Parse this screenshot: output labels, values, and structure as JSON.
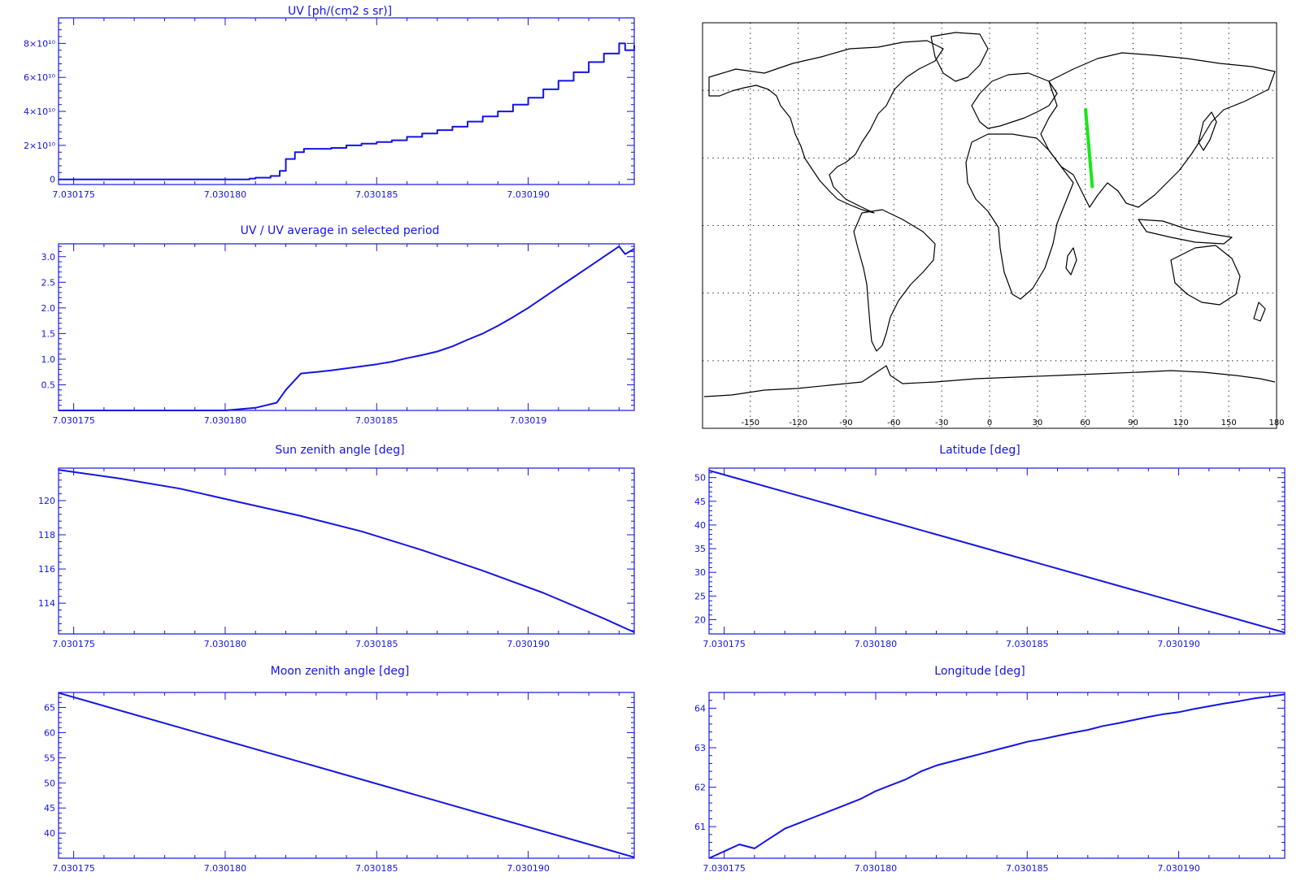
{
  "colors": {
    "plot": "#1414e6",
    "map_lines": "#000000",
    "track": "#19e619"
  },
  "chart_data": [
    {
      "id": "uv",
      "type": "line",
      "step": true,
      "title": "UV [ph/(cm2 s sr)]",
      "xlim": [
        7.0301745,
        7.0301935
      ],
      "ylim": [
        -3000000000.0,
        95000000000.0
      ],
      "xticks": [
        7.030175,
        7.03018,
        7.030185,
        7.03019
      ],
      "xtick_labels": [
        "7.030175",
        "7.030180",
        "7.030185",
        "7.030190"
      ],
      "yticks": [
        0,
        20000000000.0,
        40000000000.0,
        60000000000.0,
        80000000000.0
      ],
      "ytick_labels": [
        "0",
        "2×10¹⁰",
        "4×10¹⁰",
        "6×10¹⁰",
        "8×10¹⁰"
      ],
      "x": [
        7.0301745,
        7.03018,
        7.0301808,
        7.030181,
        7.0301815,
        7.0301818,
        7.030182,
        7.0301823,
        7.0301826,
        7.030183,
        7.0301835,
        7.030184,
        7.0301845,
        7.030185,
        7.0301855,
        7.030186,
        7.0301865,
        7.030187,
        7.0301875,
        7.030188,
        7.0301885,
        7.030189,
        7.0301895,
        7.03019,
        7.0301905,
        7.030191,
        7.0301915,
        7.030192,
        7.0301925,
        7.030193,
        7.0301932,
        7.0301935
      ],
      "y": [
        0,
        0,
        500000000.0,
        1000000000.0,
        2000000000.0,
        5000000000.0,
        12000000000.0,
        16000000000.0,
        18000000000.0,
        18000000000.0,
        18500000000.0,
        20000000000.0,
        21000000000.0,
        22000000000.0,
        23000000000.0,
        25000000000.0,
        27000000000.0,
        29000000000.0,
        31000000000.0,
        34000000000.0,
        37000000000.0,
        40000000000.0,
        44000000000.0,
        48000000000.0,
        53000000000.0,
        58000000000.0,
        63000000000.0,
        69000000000.0,
        74000000000.0,
        80000000000.0,
        76000000000.0,
        79000000000.0
      ]
    },
    {
      "id": "ratio",
      "type": "line",
      "title": "UV / UV average in selected period",
      "xlim": [
        7.0301745,
        7.0301935
      ],
      "ylim": [
        0,
        3.25
      ],
      "xticks": [
        7.030175,
        7.03018,
        7.030185,
        7.03019
      ],
      "xtick_labels": [
        "7.030175",
        "7.030180",
        "7.030185",
        "7.03019"
      ],
      "yticks": [
        0.5,
        1.0,
        1.5,
        2.0,
        2.5,
        3.0
      ],
      "ytick_labels": [
        "0.5",
        "1.0",
        "1.5",
        "2.0",
        "2.5",
        "3.0"
      ],
      "x": [
        7.0301745,
        7.03018,
        7.030181,
        7.0301817,
        7.030182,
        7.0301825,
        7.030183,
        7.0301835,
        7.030184,
        7.0301845,
        7.030185,
        7.0301855,
        7.030186,
        7.0301865,
        7.030187,
        7.0301875,
        7.030188,
        7.0301885,
        7.030189,
        7.0301895,
        7.03019,
        7.0301905,
        7.030191,
        7.0301915,
        7.030192,
        7.0301925,
        7.030193,
        7.0301932,
        7.0301935
      ],
      "y": [
        0,
        0,
        0.05,
        0.15,
        0.4,
        0.72,
        0.75,
        0.78,
        0.82,
        0.86,
        0.9,
        0.95,
        1.02,
        1.08,
        1.15,
        1.25,
        1.38,
        1.5,
        1.65,
        1.82,
        2.0,
        2.2,
        2.4,
        2.6,
        2.8,
        3.0,
        3.2,
        3.05,
        3.15
      ]
    },
    {
      "id": "sun",
      "type": "line",
      "title": "Sun zenith angle [deg]",
      "xlim": [
        7.0301745,
        7.0301935
      ],
      "ylim": [
        112.2,
        121.9
      ],
      "xticks": [
        7.030175,
        7.03018,
        7.030185,
        7.03019
      ],
      "xtick_labels": [
        "7.030175",
        "7.030180",
        "7.030185",
        "7.030190"
      ],
      "yticks": [
        114,
        116,
        118,
        120
      ],
      "ytick_labels": [
        "114",
        "116",
        "118",
        "120"
      ],
      "x": [
        7.0301745,
        7.0301765,
        7.0301785,
        7.0301805,
        7.0301825,
        7.0301845,
        7.0301865,
        7.0301885,
        7.0301905,
        7.0301925,
        7.0301935
      ],
      "y": [
        121.8,
        121.3,
        120.7,
        119.9,
        119.1,
        118.2,
        117.1,
        115.9,
        114.6,
        113.1,
        112.3
      ]
    },
    {
      "id": "lat",
      "type": "line",
      "title": "Latitude [deg]",
      "xlim": [
        7.0301745,
        7.0301935
      ],
      "ylim": [
        17,
        52
      ],
      "xticks": [
        7.030175,
        7.03018,
        7.030185,
        7.03019
      ],
      "xtick_labels": [
        "7.030175",
        "7.030180",
        "7.030185",
        "7.030190"
      ],
      "yticks": [
        20,
        25,
        30,
        35,
        40,
        45,
        50
      ],
      "ytick_labels": [
        "20",
        "25",
        "30",
        "35",
        "40",
        "45",
        "50"
      ],
      "x": [
        7.0301745,
        7.0301935
      ],
      "y": [
        51.5,
        17.3
      ]
    },
    {
      "id": "moon",
      "type": "line",
      "title": "Moon zenith angle [deg]",
      "xlim": [
        7.0301745,
        7.0301935
      ],
      "ylim": [
        35,
        68
      ],
      "xticks": [
        7.030175,
        7.03018,
        7.030185,
        7.03019
      ],
      "xtick_labels": [
        "7.030175",
        "7.030180",
        "7.030185",
        "7.030190"
      ],
      "yticks": [
        40,
        45,
        50,
        55,
        60,
        65
      ],
      "ytick_labels": [
        "40",
        "45",
        "50",
        "55",
        "60",
        "65"
      ],
      "x": [
        7.0301745,
        7.0301935
      ],
      "y": [
        67.9,
        35.2
      ]
    },
    {
      "id": "lon",
      "type": "line",
      "title": "Longitude [deg]",
      "xlim": [
        7.0301745,
        7.0301935
      ],
      "ylim": [
        60.2,
        64.4
      ],
      "xticks": [
        7.030175,
        7.03018,
        7.030185,
        7.03019
      ],
      "xtick_labels": [
        "7.030175",
        "7.030180",
        "7.030185",
        "7.030190"
      ],
      "yticks": [
        61,
        62,
        63,
        64
      ],
      "ytick_labels": [
        "61",
        "62",
        "63",
        "64"
      ],
      "x": [
        7.0301745,
        7.0301755,
        7.030176,
        7.0301765,
        7.030177,
        7.0301775,
        7.030178,
        7.0301785,
        7.030179,
        7.0301795,
        7.03018,
        7.0301805,
        7.030181,
        7.0301815,
        7.030182,
        7.0301825,
        7.030183,
        7.0301835,
        7.030184,
        7.0301845,
        7.030185,
        7.0301855,
        7.030186,
        7.0301865,
        7.030187,
        7.0301875,
        7.030188,
        7.0301885,
        7.030189,
        7.0301895,
        7.03019,
        7.0301905,
        7.030191,
        7.0301915,
        7.030192,
        7.0301925,
        7.030193,
        7.0301935
      ],
      "y": [
        60.2,
        60.55,
        60.45,
        60.7,
        60.95,
        61.1,
        61.25,
        61.4,
        61.55,
        61.7,
        61.9,
        62.05,
        62.2,
        62.4,
        62.55,
        62.65,
        62.75,
        62.85,
        62.95,
        63.05,
        63.15,
        63.22,
        63.3,
        63.38,
        63.45,
        63.55,
        63.62,
        63.7,
        63.78,
        63.85,
        63.9,
        63.98,
        64.05,
        64.12,
        64.18,
        64.25,
        64.3,
        64.35
      ]
    }
  ],
  "map": {
    "xtick_labels": [
      "-150",
      "-120",
      "-90",
      "-60",
      "-30",
      "0",
      "30",
      "60",
      "90",
      "120",
      "150",
      "180"
    ],
    "xticks": [
      -150,
      -120,
      -90,
      -60,
      -30,
      0,
      30,
      60,
      90,
      120,
      150,
      180
    ],
    "lon_range": [
      -180,
      180
    ],
    "lat_range": [
      -90,
      90
    ],
    "track": {
      "lon": [
        60.2,
        64.4
      ],
      "lat": [
        51.5,
        17.3
      ]
    }
  }
}
